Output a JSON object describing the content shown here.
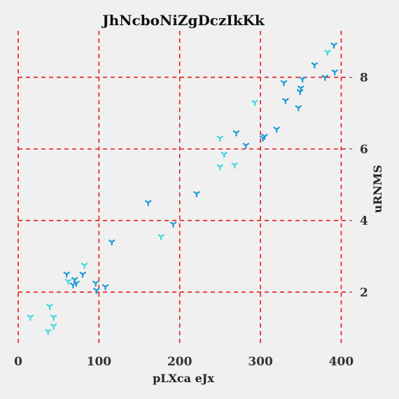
{
  "chart_data": {
    "type": "scatter",
    "title": "JhNcboNiZgDczIkKk",
    "xlabel": "pLXca eJx",
    "ylabel": "uRNMS",
    "xlim": [
      0,
      410
    ],
    "ylim": [
      0.5,
      9.3
    ],
    "xticks": [
      0,
      100,
      200,
      300,
      400
    ],
    "yticks": [
      2,
      4,
      6,
      8
    ],
    "y_axis_position": "right",
    "grid": true,
    "legend": "none",
    "colors": {
      "light": "#3ed6dd",
      "dark": "#1899d9",
      "grid": "#e8191a"
    },
    "marker": "tri-down",
    "series": [
      {
        "points": [
          [
            15,
            1.3
          ],
          [
            39,
            1.6
          ],
          [
            44,
            1.3
          ],
          [
            37,
            0.9
          ],
          [
            44,
            1.05
          ],
          [
            62,
            2.3
          ],
          [
            82,
            2.75
          ],
          [
            177,
            3.55
          ],
          [
            250,
            6.3
          ],
          [
            255,
            5.85
          ],
          [
            250,
            5.5
          ],
          [
            268,
            5.55
          ],
          [
            293,
            7.3
          ],
          [
            383,
            8.7
          ]
        ]
      },
      {
        "points": [
          [
            60,
            2.5
          ],
          [
            70,
            2.35
          ],
          [
            68,
            2.2
          ],
          [
            72,
            2.25
          ],
          [
            80,
            2.5
          ],
          [
            96,
            2.25
          ],
          [
            97,
            2.05
          ],
          [
            108,
            2.15
          ],
          [
            116,
            3.4
          ],
          [
            161,
            4.5
          ],
          [
            192,
            3.9
          ],
          [
            221,
            4.75
          ],
          [
            270,
            6.45
          ],
          [
            282,
            6.1
          ],
          [
            303,
            6.3
          ],
          [
            305,
            6.35
          ],
          [
            320,
            6.55
          ],
          [
            329,
            7.85
          ],
          [
            331,
            7.35
          ],
          [
            347,
            7.15
          ],
          [
            349,
            7.6
          ],
          [
            350,
            7.7
          ],
          [
            352,
            7.95
          ],
          [
            367,
            8.35
          ],
          [
            380,
            8.0
          ],
          [
            391,
            8.9
          ],
          [
            392,
            8.15
          ]
        ]
      }
    ]
  }
}
